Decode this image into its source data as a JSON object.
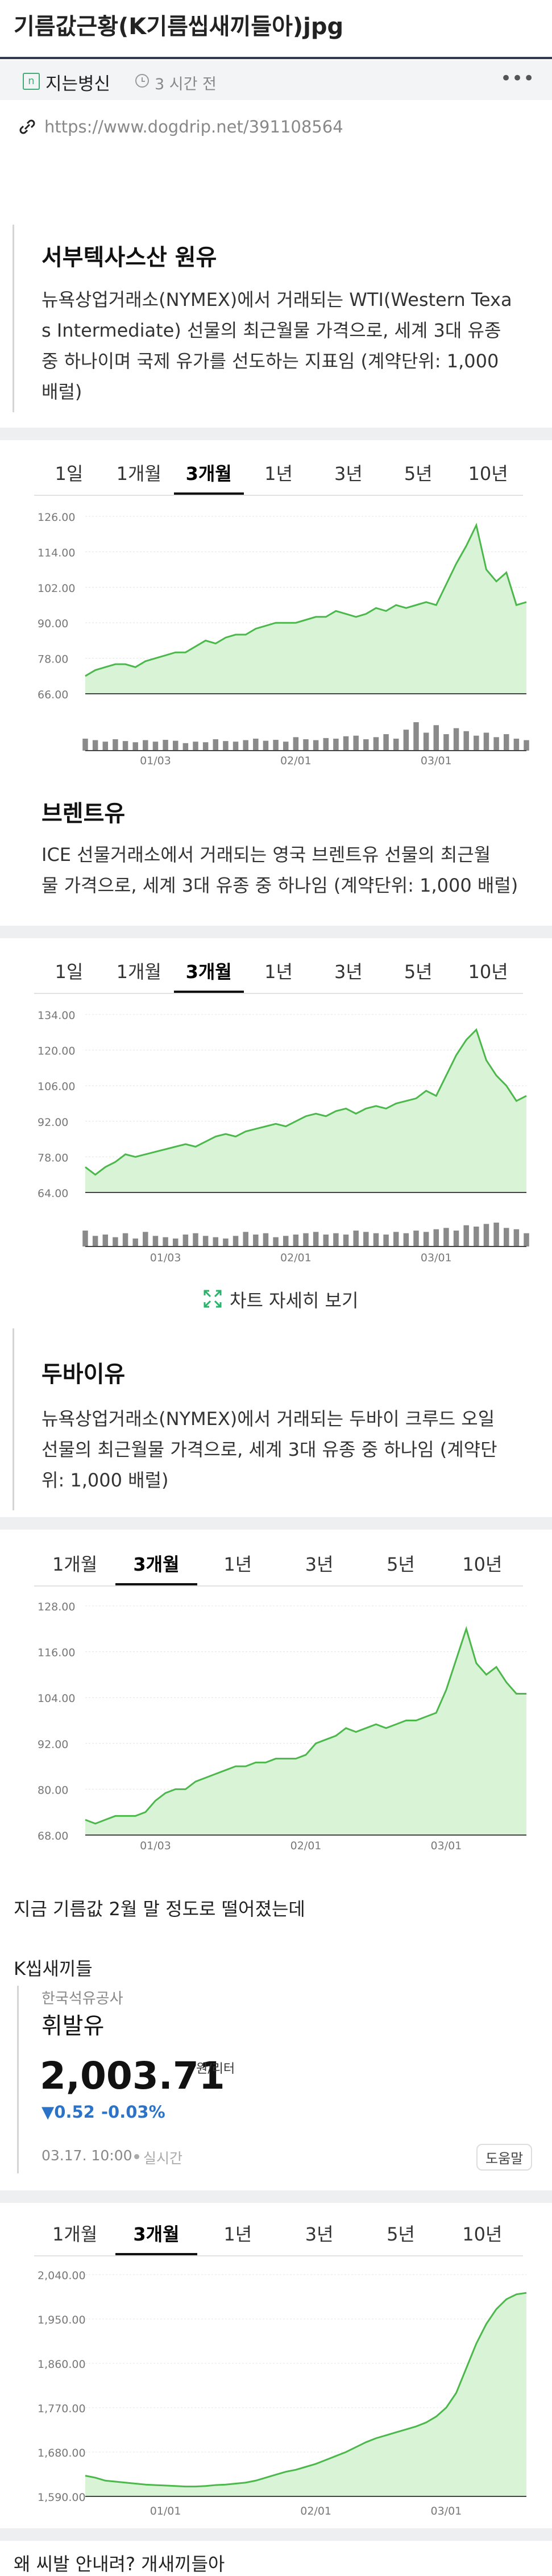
{
  "header": {
    "title": "기름값근황(K기름씹새끼들아)jpg",
    "author": "지는병신",
    "time": "3 시간 전",
    "more": "•••",
    "url": "https://www.dogdrip.net/391108564"
  },
  "sections": [
    {
      "heading": "서부텍사스산 원유",
      "description": [
        "뉴욕상업거래소(NYMEX)에서 거래되는 WTI(Western Texa",
        "s Intermediate) 선물의 최근월물 가격으로, 세계 3대 유종",
        "중 하나이며 국제 유가를 선도하는 지표임 (계약단위: 1,000",
        "배럴)"
      ],
      "tabs": [
        "1일",
        "1개월",
        "3개월",
        "1년",
        "3년",
        "5년",
        "10년"
      ],
      "active_tab": 2
    },
    {
      "heading": "브렌트유",
      "description": [
        "ICE 선물거래소에서 거래되는 영국 브렌트유 선물의 최근월",
        "물 가격으로, 세계 3대 유종 중 하나임 (계약단위: 1,000 배럴)"
      ],
      "tabs": [
        "1일",
        "1개월",
        "3개월",
        "1년",
        "3년",
        "5년",
        "10년"
      ],
      "active_tab": 2,
      "detail_link": "차트 자세히 보기"
    },
    {
      "heading": "두바이유",
      "description": [
        "뉴욕상업거래소(NYMEX)에서 거래되는 두바이 크루드 오일",
        "선물의 최근월물 가격으로, 세계 3대 유종 중 하나임 (계약단",
        "위: 1,000 배럴)"
      ],
      "tabs": [
        "1개월",
        "3개월",
        "1년",
        "3년",
        "5년",
        "10년"
      ],
      "active_tab": 1
    }
  ],
  "comment1": "지금 기름값 2월 말 정도로 떨어졌는데",
  "comment2": "K씹새끼들",
  "card": {
    "provider": "한국석유공사",
    "name": "휘발유",
    "price": "2,003.71",
    "unit": "원/리터",
    "change": "▼0.52",
    "change_pct": "-0.03%",
    "timestamp": "03.17. 10:00",
    "live": "실시간",
    "help": "도움말",
    "tabs": [
      "1개월",
      "3개월",
      "1년",
      "3년",
      "5년",
      "10년"
    ],
    "active_tab": 1
  },
  "comment3": "왜 씨발 안내려? 개새끼들아",
  "chart_data": [
    {
      "type": "line",
      "color": "#4cb84c",
      "fill": "#d8f3d6",
      "volume_color": "#8a8a8a",
      "categories": [
        null,
        null,
        null,
        null,
        null,
        null,
        null,
        "01/03",
        null,
        null,
        null,
        null,
        null,
        null,
        null,
        null,
        null,
        null,
        null,
        null,
        null,
        "02/01",
        null,
        null,
        null,
        null,
        null,
        null,
        null,
        null,
        null,
        null,
        null,
        null,
        null,
        "03/01",
        null,
        null,
        null,
        null,
        null,
        null,
        null,
        null,
        null
      ],
      "values": [
        72,
        74,
        75,
        76,
        76,
        75,
        77,
        78,
        79,
        80,
        80,
        82,
        84,
        83,
        85,
        86,
        86,
        88,
        89,
        90,
        90,
        90,
        91,
        92,
        92,
        94,
        93,
        92,
        93,
        95,
        94,
        96,
        95,
        96,
        97,
        96,
        103,
        110,
        116,
        123,
        108,
        104,
        107,
        96,
        97
      ],
      "volume": [
        40,
        35,
        30,
        38,
        32,
        28,
        35,
        30,
        36,
        33,
        25,
        30,
        28,
        38,
        32,
        30,
        35,
        40,
        33,
        36,
        30,
        45,
        38,
        35,
        42,
        40,
        48,
        50,
        38,
        45,
        55,
        40,
        70,
        95,
        60,
        85,
        55,
        75,
        65,
        50,
        60,
        45,
        55,
        40,
        35
      ],
      "ylim": [
        66,
        126
      ],
      "yticks": [
        {
          "value": 126,
          "label": "126.00"
        },
        {
          "value": 114,
          "label": "114.00"
        },
        {
          "value": 102,
          "label": "102.00"
        },
        {
          "value": 90,
          "label": "90.00"
        },
        {
          "value": 78,
          "label": "78.00"
        },
        {
          "value": 66,
          "label": "66.00"
        }
      ],
      "grid": true
    },
    {
      "type": "line",
      "color": "#4cb84c",
      "fill": "#d8f3d6",
      "volume_color": "#8a8a8a",
      "categories": [
        null,
        null,
        null,
        null,
        null,
        null,
        null,
        null,
        "01/03",
        null,
        null,
        null,
        null,
        null,
        null,
        null,
        null,
        null,
        null,
        null,
        null,
        "02/01",
        null,
        null,
        null,
        null,
        null,
        null,
        null,
        null,
        null,
        null,
        null,
        null,
        null,
        "03/01",
        null,
        null,
        null,
        null,
        null,
        null,
        null,
        null,
        null
      ],
      "values": [
        74,
        71,
        74,
        76,
        79,
        78,
        79,
        80,
        81,
        82,
        83,
        82,
        84,
        86,
        87,
        86,
        88,
        89,
        90,
        91,
        90,
        92,
        94,
        95,
        94,
        96,
        97,
        95,
        97,
        98,
        97,
        99,
        100,
        101,
        104,
        102,
        110,
        118,
        124,
        128,
        116,
        110,
        106,
        100,
        102
      ],
      "volume": [
        60,
        40,
        45,
        35,
        50,
        30,
        55,
        40,
        35,
        30,
        45,
        50,
        40,
        35,
        30,
        40,
        55,
        45,
        50,
        35,
        40,
        45,
        50,
        55,
        45,
        50,
        45,
        60,
        55,
        50,
        45,
        55,
        50,
        60,
        55,
        65,
        70,
        60,
        80,
        75,
        85,
        90,
        70,
        65,
        50
      ],
      "ylim": [
        64,
        134
      ],
      "yticks": [
        {
          "value": 134,
          "label": "134.00"
        },
        {
          "value": 120,
          "label": "120.00"
        },
        {
          "value": 106,
          "label": "106.00"
        },
        {
          "value": 92,
          "label": "92.00"
        },
        {
          "value": 78,
          "label": "78.00"
        },
        {
          "value": 64,
          "label": "64.00"
        }
      ],
      "grid": true
    },
    {
      "type": "line",
      "color": "#4cb84c",
      "fill": "#d8f3d6",
      "categories": [
        null,
        null,
        null,
        null,
        null,
        null,
        null,
        "01/03",
        null,
        null,
        null,
        null,
        null,
        null,
        null,
        null,
        null,
        null,
        null,
        null,
        null,
        null,
        "02/01",
        null,
        null,
        null,
        null,
        null,
        null,
        null,
        null,
        null,
        null,
        null,
        null,
        null,
        "03/01",
        null,
        null,
        null,
        null,
        null,
        null,
        null,
        null
      ],
      "values": [
        72,
        71,
        72,
        73,
        73,
        73,
        74,
        77,
        79,
        80,
        80,
        82,
        83,
        84,
        85,
        86,
        86,
        87,
        87,
        88,
        88,
        88,
        89,
        92,
        93,
        94,
        96,
        95,
        96,
        97,
        96,
        97,
        98,
        98,
        99,
        100,
        106,
        114,
        122,
        113,
        110,
        112,
        108,
        105,
        105
      ],
      "ylim": [
        68,
        128
      ],
      "yticks": [
        {
          "value": 128,
          "label": "128.00"
        },
        {
          "value": 116,
          "label": "116.00"
        },
        {
          "value": 104,
          "label": "104.00"
        },
        {
          "value": 92,
          "label": "92.00"
        },
        {
          "value": 80,
          "label": "80.00"
        },
        {
          "value": 68,
          "label": "68.00"
        }
      ],
      "grid": true
    },
    {
      "type": "line",
      "color": "#4cb84c",
      "fill": "#d8f3d6",
      "categories": [
        null,
        null,
        null,
        null,
        null,
        null,
        null,
        null,
        "01/01",
        null,
        null,
        null,
        null,
        null,
        null,
        null,
        null,
        null,
        null,
        null,
        null,
        null,
        null,
        "02/01",
        null,
        null,
        null,
        null,
        null,
        null,
        null,
        null,
        null,
        null,
        null,
        null,
        "03/01",
        null,
        null,
        null,
        null,
        null,
        null,
        null,
        null
      ],
      "values": [
        1632,
        1628,
        1622,
        1620,
        1618,
        1616,
        1614,
        1613,
        1612,
        1611,
        1610,
        1610,
        1611,
        1613,
        1614,
        1616,
        1618,
        1622,
        1628,
        1634,
        1640,
        1644,
        1650,
        1656,
        1664,
        1672,
        1680,
        1690,
        1700,
        1708,
        1714,
        1720,
        1726,
        1732,
        1740,
        1752,
        1770,
        1800,
        1850,
        1900,
        1940,
        1970,
        1990,
        2000,
        2003
      ],
      "ylim": [
        1590,
        2040
      ],
      "yticks": [
        {
          "value": 2040,
          "label": "2,040.00"
        },
        {
          "value": 1950,
          "label": "1,950.00"
        },
        {
          "value": 1860,
          "label": "1,860.00"
        },
        {
          "value": 1770,
          "label": "1,770.00"
        },
        {
          "value": 1680,
          "label": "1,680.00"
        },
        {
          "value": 1590,
          "label": "1,590.00"
        }
      ],
      "grid": true
    }
  ]
}
